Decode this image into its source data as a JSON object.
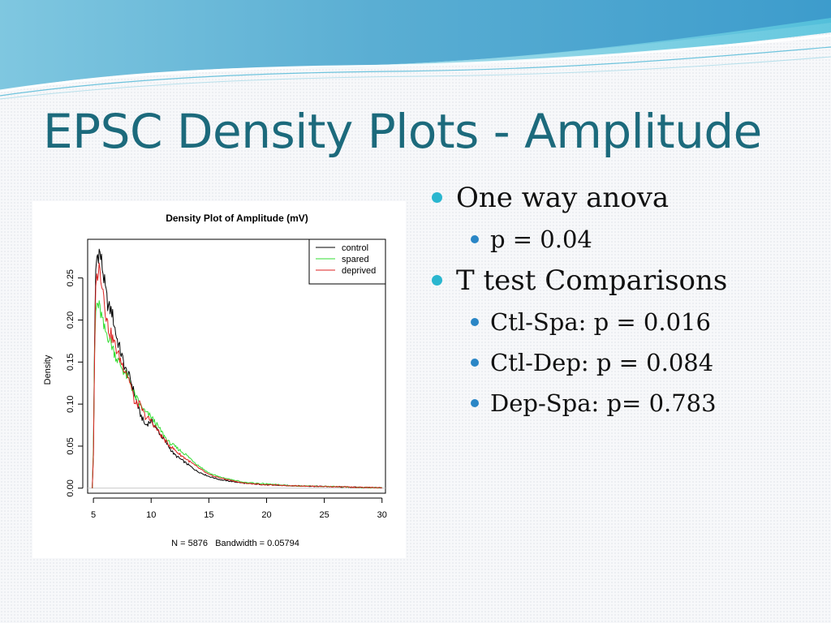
{
  "slide": {
    "title": "EPSC Density Plots - Amplitude",
    "bullets": [
      {
        "level": 1,
        "text": "One way anova"
      },
      {
        "level": 2,
        "text": "p = 0.04"
      },
      {
        "level": 1,
        "text": "T test Comparisons"
      },
      {
        "level": 2,
        "text": "Ctl-Spa: p = 0.016"
      },
      {
        "level": 2,
        "text": "Ctl-Dep: p = 0.084"
      },
      {
        "level": 2,
        "text": "Dep-Spa: p= 0.783"
      }
    ],
    "colors": {
      "title": "#1c6a7c",
      "bullet_l1": "#2ab6cf",
      "bullet_l2": "#2a86c6"
    }
  },
  "chart_data": {
    "type": "line",
    "title": "Density Plot of Amplitude (mV)",
    "xlabel": "N = 5876   Bandwidth = 0.05794",
    "ylabel": "Density",
    "xlim": [
      4.5,
      30.3
    ],
    "ylim": [
      -0.006,
      0.296
    ],
    "x_ticks": [
      5,
      10,
      15,
      20,
      25,
      30
    ],
    "x_tick_labels": [
      "5",
      "10",
      "15",
      "20",
      "25",
      "30"
    ],
    "y_ticks": [
      0.0,
      0.05,
      0.1,
      0.15,
      0.2,
      0.25
    ],
    "y_tick_labels": [
      "0.00",
      "0.05",
      "0.10",
      "0.15",
      "0.20",
      "0.25"
    ],
    "legend_position": "top-right",
    "series": [
      {
        "name": "control",
        "color": "#000000",
        "x": [
          4.9,
          5.0,
          5.1,
          5.2,
          5.3,
          5.5,
          5.7,
          5.9,
          6.1,
          6.3,
          6.6,
          7.0,
          7.4,
          7.8,
          8.2,
          8.6,
          9.0,
          9.5,
          10.0,
          10.5,
          11.0,
          11.5,
          12.0,
          12.5,
          13.0,
          14.0,
          15.0,
          16.0,
          17.0,
          18.0,
          20.0,
          22.0,
          25.0,
          28.0,
          30.0
        ],
        "y": [
          0.0,
          0.04,
          0.17,
          0.26,
          0.275,
          0.282,
          0.27,
          0.25,
          0.23,
          0.215,
          0.21,
          0.18,
          0.16,
          0.14,
          0.13,
          0.11,
          0.09,
          0.075,
          0.08,
          0.07,
          0.06,
          0.05,
          0.04,
          0.035,
          0.03,
          0.02,
          0.014,
          0.01,
          0.008,
          0.006,
          0.004,
          0.003,
          0.002,
          0.001,
          0.0005
        ]
      },
      {
        "name": "spared",
        "color": "#33dd33",
        "x": [
          4.9,
          5.0,
          5.1,
          5.2,
          5.3,
          5.5,
          5.7,
          5.9,
          6.1,
          6.3,
          6.6,
          7.0,
          7.4,
          7.8,
          8.2,
          8.6,
          9.0,
          9.5,
          10.0,
          10.5,
          11.0,
          11.5,
          12.0,
          12.5,
          13.0,
          14.0,
          15.0,
          16.0,
          17.0,
          18.0,
          20.0,
          22.0,
          25.0,
          28.0,
          30.0
        ],
        "y": [
          0.0,
          0.05,
          0.16,
          0.21,
          0.22,
          0.215,
          0.205,
          0.19,
          0.185,
          0.18,
          0.17,
          0.155,
          0.145,
          0.135,
          0.125,
          0.11,
          0.1,
          0.09,
          0.085,
          0.075,
          0.065,
          0.055,
          0.05,
          0.045,
          0.04,
          0.028,
          0.018,
          0.013,
          0.01,
          0.007,
          0.005,
          0.003,
          0.002,
          0.001,
          0.0005
        ]
      },
      {
        "name": "deprived",
        "color": "#dd2222",
        "x": [
          4.9,
          5.0,
          5.1,
          5.2,
          5.3,
          5.5,
          5.7,
          5.9,
          6.1,
          6.3,
          6.6,
          7.0,
          7.4,
          7.8,
          8.2,
          8.6,
          9.0,
          9.5,
          10.0,
          10.5,
          11.0,
          11.5,
          12.0,
          12.5,
          13.0,
          14.0,
          15.0,
          16.0,
          17.0,
          18.0,
          20.0,
          22.0,
          25.0,
          28.0,
          30.0
        ],
        "y": [
          0.0,
          0.04,
          0.15,
          0.24,
          0.255,
          0.262,
          0.25,
          0.23,
          0.205,
          0.19,
          0.18,
          0.165,
          0.15,
          0.14,
          0.125,
          0.1,
          0.1,
          0.085,
          0.08,
          0.07,
          0.06,
          0.052,
          0.046,
          0.04,
          0.035,
          0.025,
          0.016,
          0.012,
          0.009,
          0.006,
          0.004,
          0.003,
          0.002,
          0.001,
          0.0005
        ]
      }
    ]
  }
}
